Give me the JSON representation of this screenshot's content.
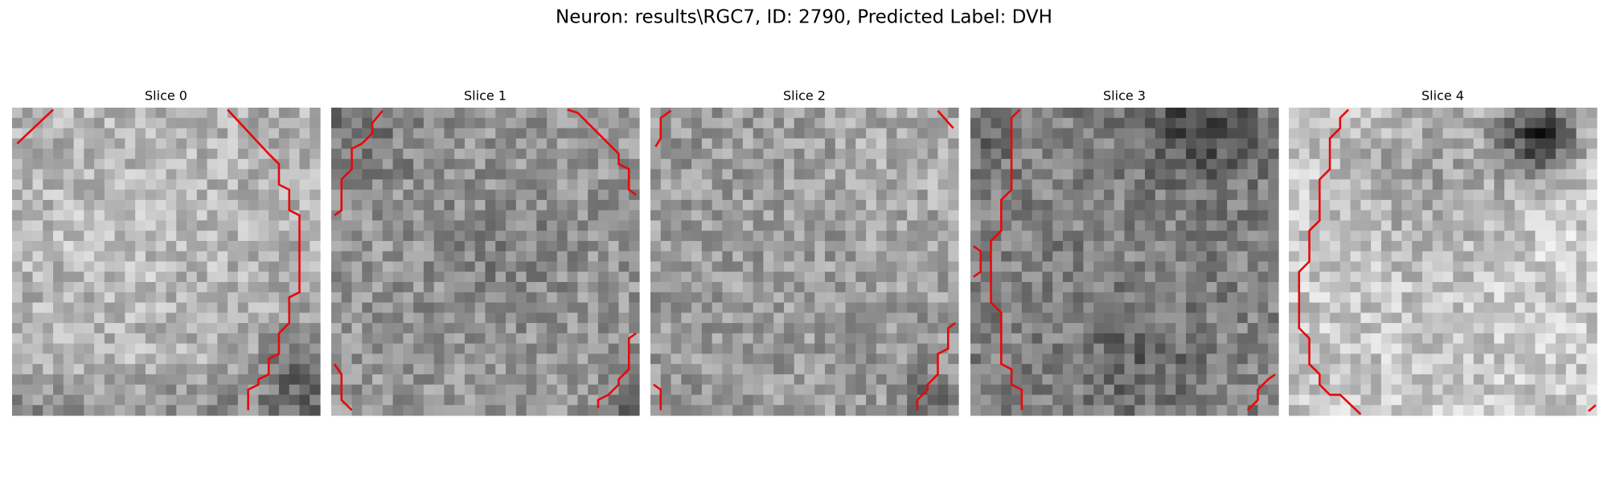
{
  "figure": {
    "title": "Neuron: results\\RGC7, ID: 2790, Predicted Label: DVH",
    "panels": [
      {
        "title": "Slice 0"
      },
      {
        "title": "Slice 1"
      },
      {
        "title": "Slice 2"
      },
      {
        "title": "Slice 3"
      },
      {
        "title": "Slice 4"
      }
    ]
  }
}
